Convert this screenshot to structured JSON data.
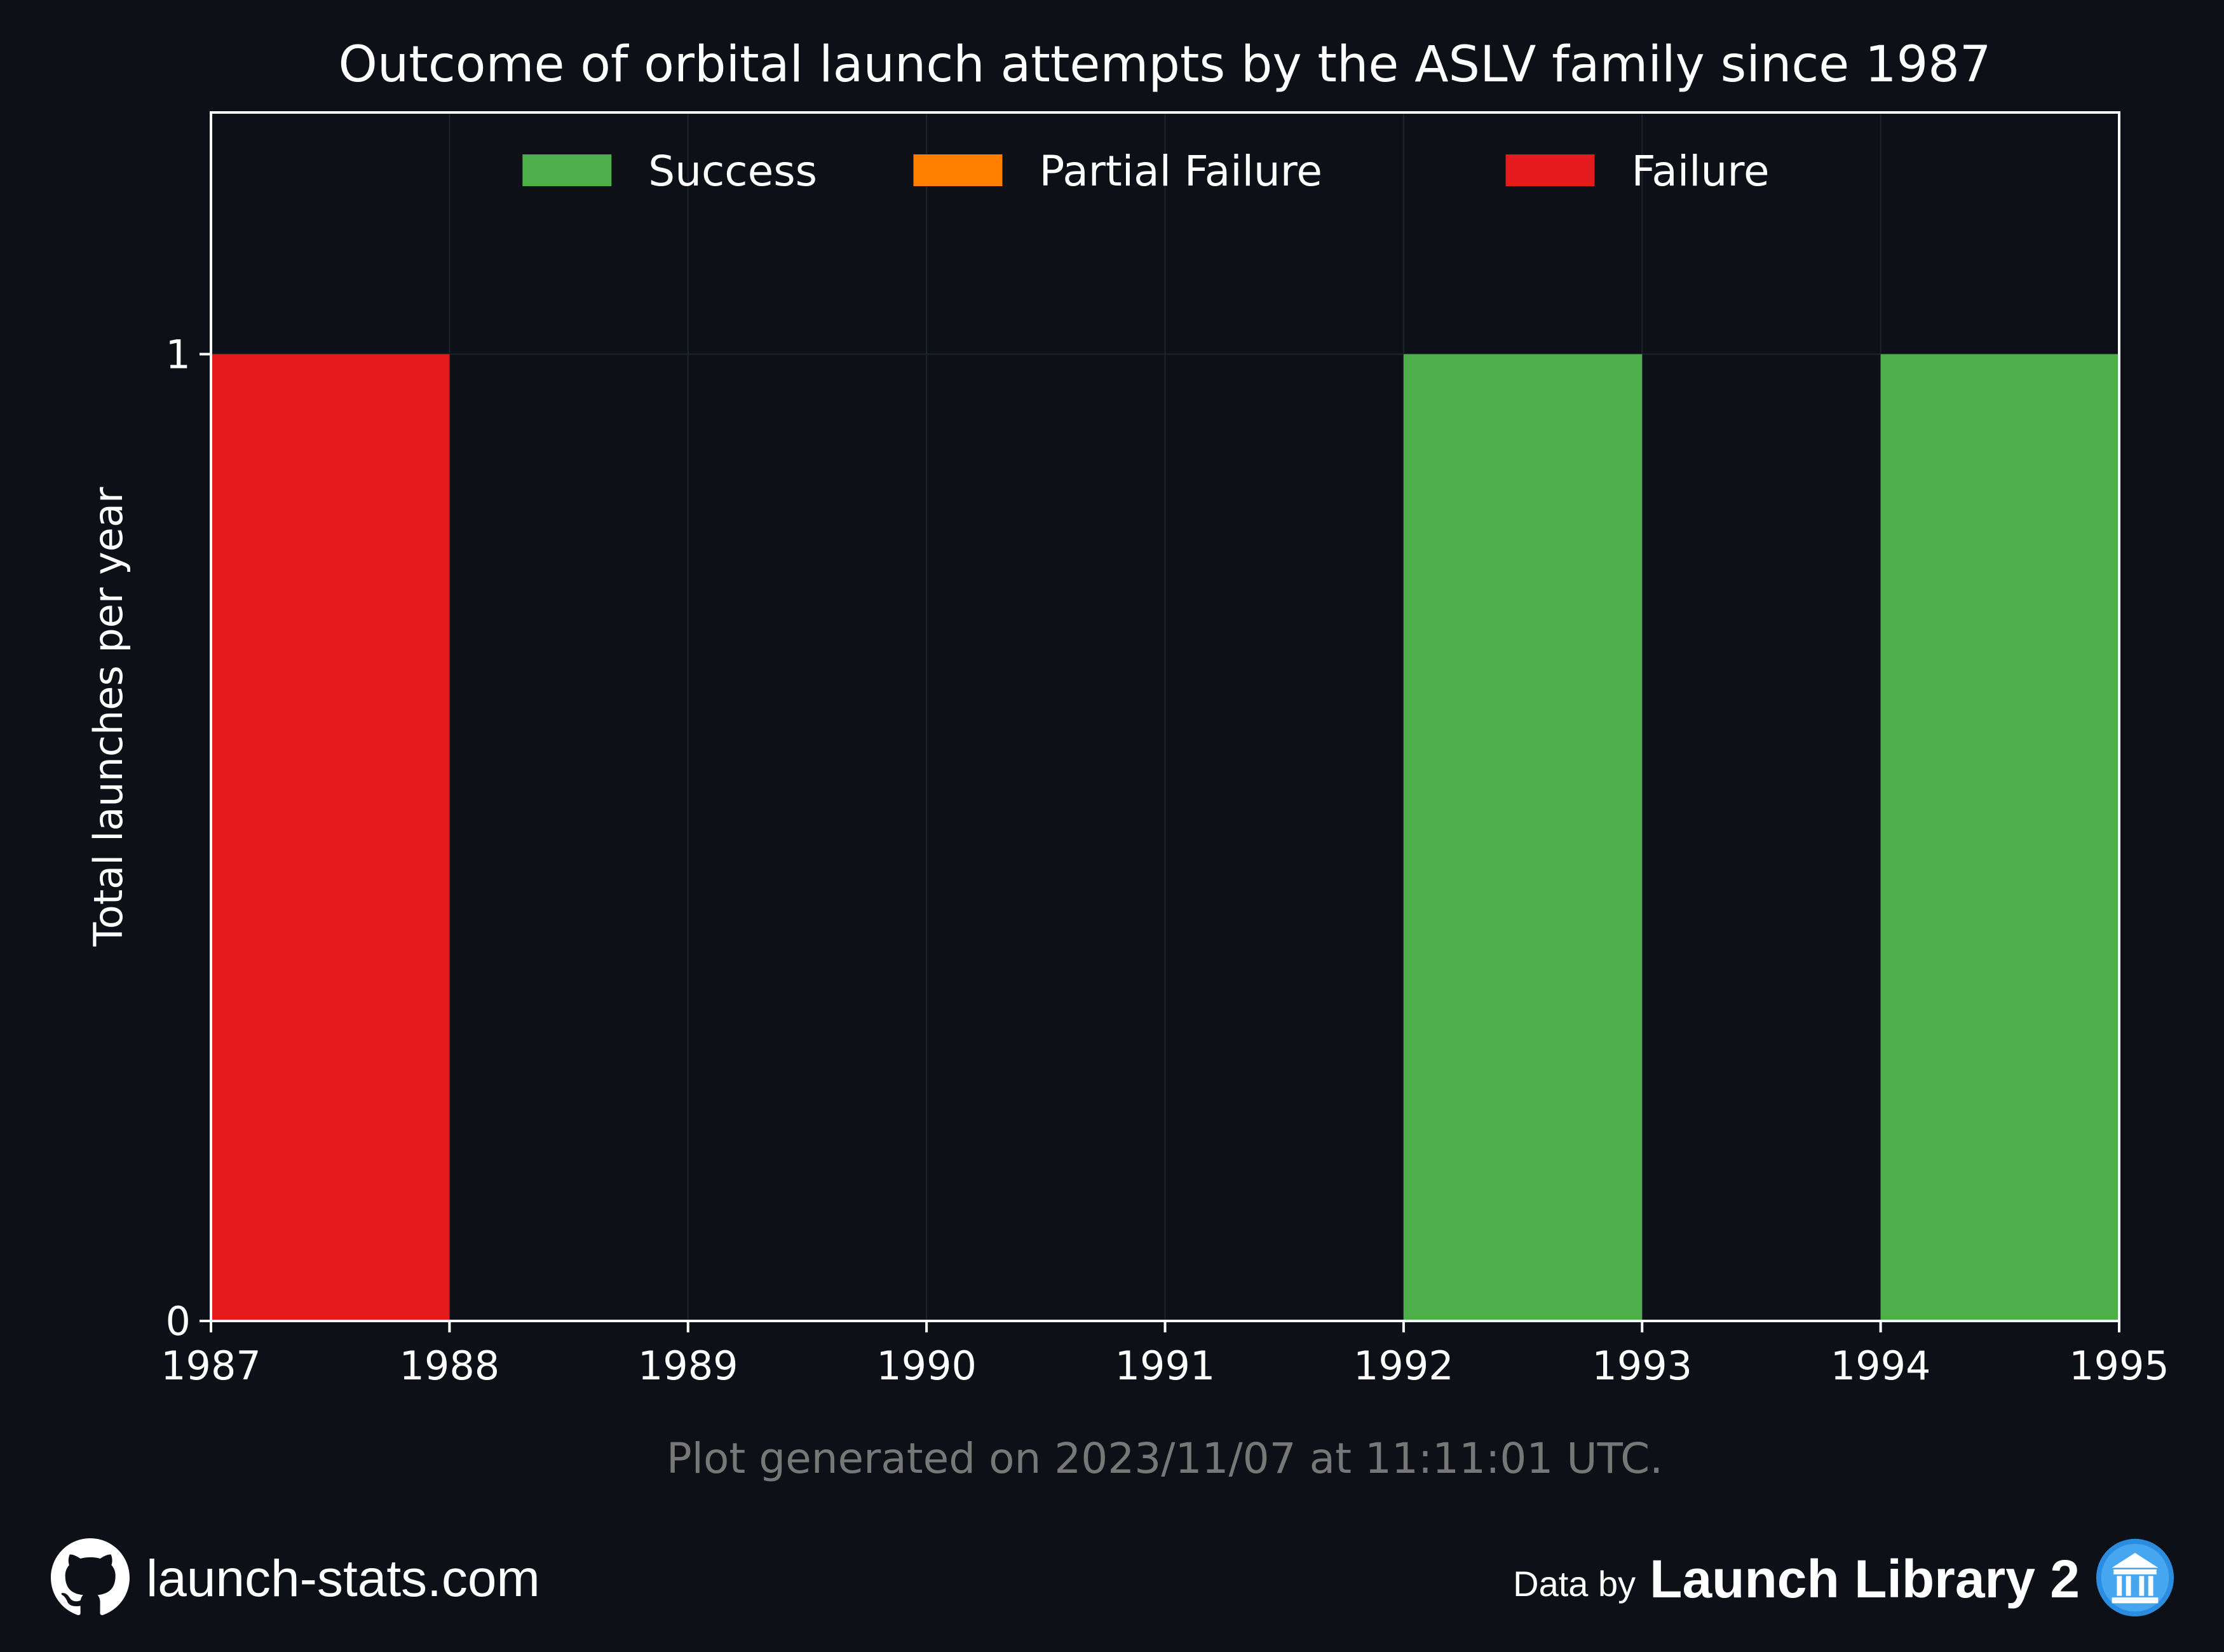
{
  "chart_data": {
    "type": "bar",
    "title": "Outcome of orbital launch attempts by the ASLV family since 1987",
    "xlabel": "",
    "ylabel": "Total launches per year",
    "xlim": [
      1987,
      1995
    ],
    "ylim": [
      0,
      1.25
    ],
    "x_ticks": [
      "1987",
      "1988",
      "1989",
      "1990",
      "1991",
      "1992",
      "1993",
      "1994",
      "1995"
    ],
    "y_ticks": [
      "0",
      "1"
    ],
    "categories": [
      1987,
      1988,
      1989,
      1990,
      1991,
      1992,
      1993,
      1994
    ],
    "bin_width_years": 2,
    "series": [
      {
        "name": "Success",
        "color": "#4daf4a",
        "values": [
          0,
          0,
          0,
          0,
          0,
          1,
          0,
          1
        ]
      },
      {
        "name": "Partial Failure",
        "color": "#ff7f00",
        "values": [
          0,
          0,
          0,
          0,
          0,
          0,
          0,
          0
        ]
      },
      {
        "name": "Failure",
        "color": "#e41a1c",
        "values": [
          1,
          0,
          0,
          0,
          0,
          0,
          0,
          0
        ]
      }
    ],
    "legend_position": "top-center",
    "grid": true,
    "annotation": "Plot generated on 2023/11/07 at 11:11:01 UTC."
  },
  "footer": {
    "site": "launch-stats.com",
    "github_icon": "github-icon",
    "data_by": "Data by",
    "source": "Launch Library 2",
    "source_icon": "launch-library-icon"
  },
  "colors": {
    "background": "#0d1017",
    "axes": "#ffffff",
    "grid": "#1e222a",
    "annotation": "#777777"
  }
}
